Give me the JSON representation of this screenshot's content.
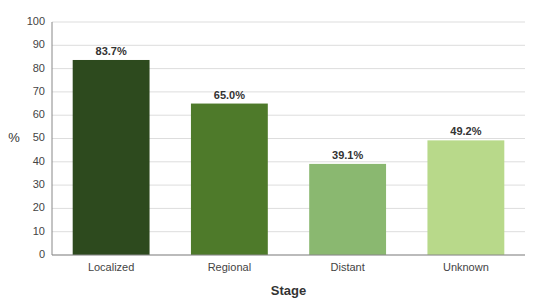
{
  "chart_data": {
    "type": "bar",
    "categories": [
      "Localized",
      "Regional",
      "Distant",
      "Unknown"
    ],
    "values": [
      83.7,
      65.0,
      39.1,
      49.2
    ],
    "value_labels": [
      "83.7%",
      "65.0%",
      "39.1%",
      "49.2%"
    ],
    "data_labels": true,
    "colors": [
      "#2d4a1e",
      "#4e7a2a",
      "#8ab870",
      "#b8d98a"
    ],
    "xlabel": "Stage",
    "ylabel": "%",
    "ylim": [
      0,
      100
    ],
    "yticks": [
      0,
      10,
      20,
      30,
      40,
      50,
      60,
      70,
      80,
      90,
      100
    ],
    "grid": true
  }
}
